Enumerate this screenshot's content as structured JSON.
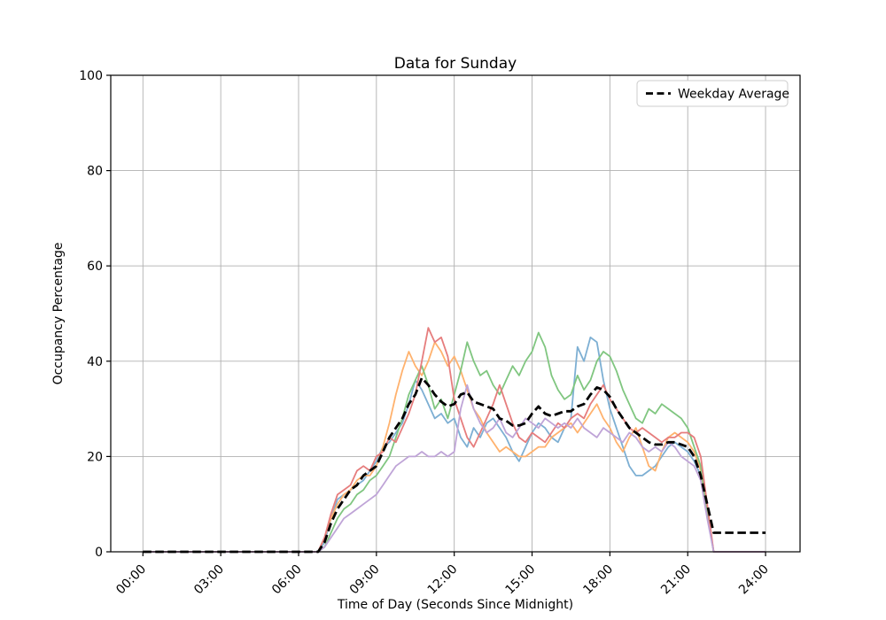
{
  "figure": {
    "background": "#ffffff"
  },
  "chart_data": {
    "type": "line",
    "title": "Data for Sunday",
    "xlabel": "Time of Day (Seconds Since Midnight)",
    "ylabel": "Occupancy Percentage",
    "grid": true,
    "legend": {
      "label": "Weekday Average",
      "position": "upper right"
    },
    "xlim_hours": [
      -1.24,
      25.33
    ],
    "ylim": [
      0,
      100
    ],
    "y_ticks": [
      0,
      20,
      40,
      60,
      80,
      100
    ],
    "x_tick_hours": [
      0,
      3,
      6,
      9,
      12,
      15,
      18,
      21,
      24
    ],
    "x_tick_labels": [
      "00:00",
      "03:00",
      "06:00",
      "09:00",
      "12:00",
      "15:00",
      "18:00",
      "21:00",
      "24:00"
    ],
    "x_step_hours": 0.25,
    "x_start_hour": 0,
    "colors": {
      "grid": "#b0b0b0",
      "spine": "#000000",
      "average": "#000000"
    },
    "series": [
      {
        "name": "day-1-blue",
        "color": "#7dafd3",
        "width": 1.8,
        "dashed": false,
        "values": [
          0,
          0,
          0,
          0,
          0,
          0,
          0,
          0,
          0,
          0,
          0,
          0,
          0,
          0,
          0,
          0,
          0,
          0,
          0,
          0,
          0,
          0,
          0,
          0,
          0,
          0,
          0,
          0,
          2,
          7,
          11,
          12,
          13,
          14,
          15,
          17,
          19,
          22,
          23,
          25,
          27,
          31,
          36,
          34,
          31,
          28,
          29,
          27,
          28,
          24,
          22,
          26,
          24,
          27,
          28,
          26,
          24,
          21,
          19,
          22,
          25,
          27,
          26,
          24,
          23,
          26,
          28,
          43,
          40,
          45,
          44,
          36,
          30,
          26,
          22,
          18,
          16,
          16,
          17,
          18,
          20,
          22,
          23,
          22,
          21,
          19,
          16,
          8,
          0,
          0,
          0,
          0,
          0,
          0,
          0,
          0,
          0
        ]
      },
      {
        "name": "day-2-orange",
        "color": "#ffb26e",
        "width": 1.8,
        "dashed": false,
        "values": [
          0,
          0,
          0,
          0,
          0,
          0,
          0,
          0,
          0,
          0,
          0,
          0,
          0,
          0,
          0,
          0,
          0,
          0,
          0,
          0,
          0,
          0,
          0,
          0,
          0,
          0,
          0,
          0,
          3,
          7,
          10,
          12,
          13,
          15,
          16,
          16,
          18,
          22,
          27,
          33,
          38,
          42,
          39,
          37,
          40,
          44,
          42,
          39,
          41,
          38,
          34,
          30,
          28,
          25,
          23,
          21,
          22,
          21,
          20,
          20,
          21,
          22,
          22,
          24,
          25,
          26,
          27,
          25,
          27,
          29,
          31,
          28,
          26,
          23,
          21,
          24,
          26,
          22,
          18,
          17,
          21,
          24,
          25,
          24,
          23,
          21,
          17,
          8,
          0,
          0,
          0,
          0,
          0,
          0,
          0,
          0,
          0
        ]
      },
      {
        "name": "day-3-green",
        "color": "#80c680",
        "width": 1.8,
        "dashed": false,
        "values": [
          0,
          0,
          0,
          0,
          0,
          0,
          0,
          0,
          0,
          0,
          0,
          0,
          0,
          0,
          0,
          0,
          0,
          0,
          0,
          0,
          0,
          0,
          0,
          0,
          0,
          0,
          0,
          0,
          1,
          4,
          7,
          9,
          10,
          12,
          13,
          15,
          16,
          18,
          20,
          24,
          28,
          33,
          36,
          39,
          35,
          30,
          32,
          28,
          33,
          38,
          44,
          40,
          37,
          38,
          35,
          33,
          36,
          39,
          37,
          40,
          42,
          46,
          43,
          37,
          34,
          32,
          33,
          37,
          34,
          36,
          40,
          42,
          41,
          38,
          34,
          31,
          28,
          27,
          30,
          29,
          31,
          30,
          29,
          28,
          26,
          22,
          18,
          8,
          0,
          0,
          0,
          0,
          0,
          0,
          0,
          0,
          0
        ]
      },
      {
        "name": "day-4-red",
        "color": "#e67d7d",
        "width": 1.8,
        "dashed": false,
        "values": [
          0,
          0,
          0,
          0,
          0,
          0,
          0,
          0,
          0,
          0,
          0,
          0,
          0,
          0,
          0,
          0,
          0,
          0,
          0,
          0,
          0,
          0,
          0,
          0,
          0,
          0,
          0,
          0,
          3,
          8,
          12,
          13,
          14,
          17,
          18,
          17,
          20,
          21,
          24,
          23,
          26,
          29,
          33,
          40,
          47,
          44,
          45,
          41,
          32,
          28,
          24,
          22,
          25,
          28,
          31,
          35,
          31,
          27,
          24,
          23,
          25,
          24,
          23,
          25,
          27,
          26,
          28,
          29,
          28,
          31,
          33,
          35,
          32,
          30,
          28,
          26,
          25,
          26,
          25,
          24,
          23,
          24,
          24,
          25,
          25,
          24,
          20,
          10,
          0,
          0,
          0,
          0,
          0,
          0,
          0,
          0,
          0
        ]
      },
      {
        "name": "day-5-purple",
        "color": "#bfa4d7",
        "width": 1.8,
        "dashed": false,
        "values": [
          0,
          0,
          0,
          0,
          0,
          0,
          0,
          0,
          0,
          0,
          0,
          0,
          0,
          0,
          0,
          0,
          0,
          0,
          0,
          0,
          0,
          0,
          0,
          0,
          0,
          0,
          0,
          0,
          1,
          3,
          5,
          7,
          8,
          9,
          10,
          11,
          12,
          14,
          16,
          18,
          19,
          20,
          20,
          21,
          20,
          20,
          21,
          20,
          21,
          30,
          35,
          30,
          27,
          25,
          26,
          28,
          25,
          24,
          26,
          28,
          27,
          26,
          28,
          27,
          26,
          27,
          26,
          28,
          26,
          25,
          24,
          26,
          25,
          24,
          23,
          25,
          24,
          22,
          21,
          22,
          21,
          23,
          22,
          20,
          19,
          18,
          15,
          7,
          0,
          0,
          0,
          0,
          0,
          0,
          0,
          0,
          0
        ]
      },
      {
        "name": "weekday-average",
        "color": "#000000",
        "width": 2.8,
        "dashed": true,
        "values": [
          0,
          0,
          0,
          0,
          0,
          0,
          0,
          0,
          0,
          0,
          0,
          0,
          0,
          0,
          0,
          0,
          0,
          0,
          0,
          0,
          0,
          0,
          0,
          0,
          0,
          0,
          0,
          0,
          2,
          6,
          9,
          11,
          13,
          14,
          16,
          17,
          18,
          21,
          24,
          26,
          28,
          31,
          33,
          36.5,
          35,
          33,
          31.5,
          30.5,
          31,
          33,
          33.5,
          31.5,
          31,
          30.5,
          30,
          28,
          27.5,
          26.5,
          26.5,
          27,
          29,
          30.5,
          29,
          28.5,
          29,
          29.5,
          29.5,
          30.5,
          31,
          33,
          34.5,
          34,
          32.5,
          30,
          28,
          26,
          25,
          24,
          23,
          22.5,
          22.5,
          23,
          23,
          22.5,
          22,
          20,
          16,
          10,
          4,
          4,
          4,
          4,
          4,
          4,
          4,
          4,
          4
        ]
      }
    ]
  }
}
